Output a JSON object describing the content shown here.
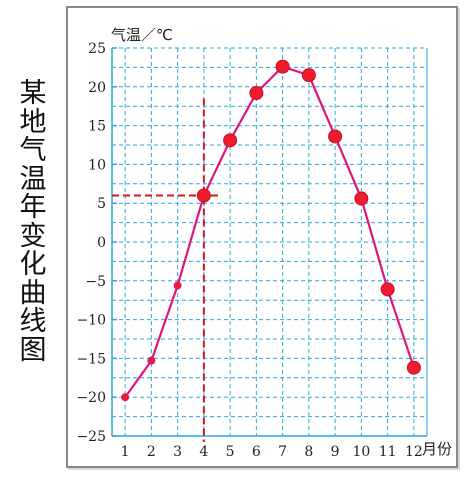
{
  "chart_data": {
    "type": "line",
    "side_title": "某地气温年变化曲线图",
    "ylabel": "气温／℃",
    "xlabel": "月份",
    "x": [
      1,
      2,
      3,
      4,
      5,
      6,
      7,
      8,
      9,
      10,
      11,
      12
    ],
    "y_ticks": [
      25,
      20,
      15,
      10,
      5,
      0,
      -5,
      -10,
      -15,
      -20,
      -25
    ],
    "ylim": [
      -25,
      25
    ],
    "xlim": [
      0.5,
      12.5
    ],
    "grid": true,
    "series": [
      {
        "values": [
          -20,
          -15.3,
          -5.6,
          6,
          13.1,
          19.2,
          22.6,
          21.5,
          13.6,
          5.6,
          -6.1,
          -16.2
        ]
      }
    ],
    "highlight": {
      "x": 4,
      "y": 6
    },
    "colors": {
      "line": "#e0147a",
      "marker": "#ee1c2e",
      "grid": "#2ea6df",
      "axis": "#2ea6df",
      "guide": "#d4151d"
    }
  }
}
